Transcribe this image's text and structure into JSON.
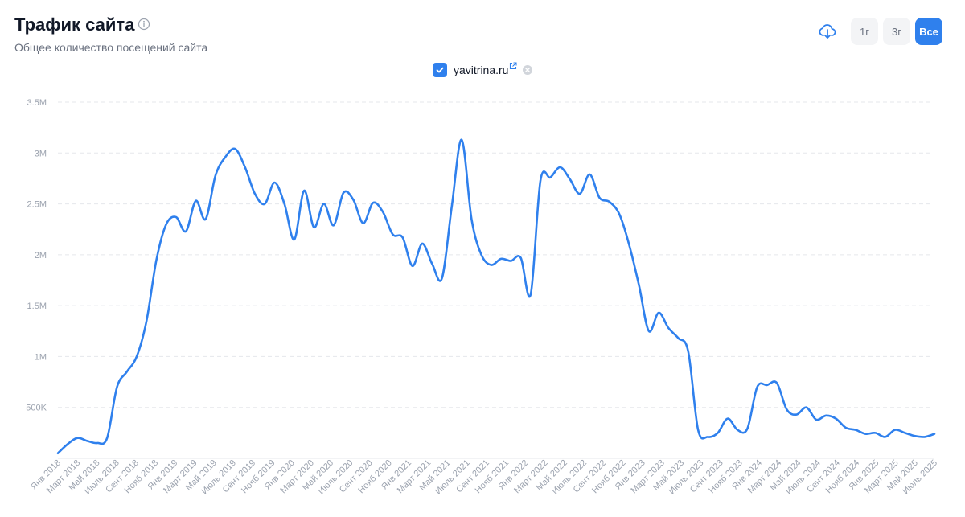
{
  "header": {
    "title": "Трафик сайта",
    "subtitle": "Общее количество посещений сайта"
  },
  "icons": {
    "info": "info-icon",
    "download": "cloud-download-icon",
    "external": "external-link-icon",
    "remove": "remove-icon",
    "checkbox": "checkmark-icon"
  },
  "range_buttons": [
    {
      "label": "1г",
      "active": false
    },
    {
      "label": "3г",
      "active": false
    },
    {
      "label": "Все",
      "active": true
    }
  ],
  "legend": {
    "label": "yavitrina.ru",
    "checked": true
  },
  "colors": {
    "accent": "#2f80ed",
    "line": "#2f80ed",
    "grid": "#e5e7eb",
    "tick": "#9ca3af"
  },
  "chart_data": {
    "type": "line",
    "grid": true,
    "ylim": [
      0,
      3500000
    ],
    "ytick_values": [
      500000,
      1000000,
      1500000,
      2000000,
      2500000,
      3000000,
      3500000
    ],
    "ytick_labels": [
      "500K",
      "1M",
      "1.5M",
      "2M",
      "2.5M",
      "3M",
      "3.5M"
    ],
    "xtick_labels": [
      "Янв 2018",
      "Март 2018",
      "Май 2018",
      "Июль 2018",
      "Сент 2018",
      "Нояб 2018",
      "Янв 2019",
      "Март 2019",
      "Май 2019",
      "Июль 2019",
      "Сент 2019",
      "Нояб 2019",
      "Янв 2020",
      "Март 2020",
      "Май 2020",
      "Июль 2020",
      "Сент 2020",
      "Нояб 2020",
      "Янв 2021",
      "Март 2021",
      "Май 2021",
      "Июль 2021",
      "Сент 2021",
      "Нояб 2021",
      "Янв 2022",
      "Март 2022",
      "Май 2022",
      "Июль 2022",
      "Сент 2022",
      "Нояб 2022",
      "Янв 2023",
      "Март 2023",
      "Май 2023",
      "Июль 2023",
      "Сент 2023",
      "Нояб 2023",
      "Янв 2024",
      "Март 2024",
      "Май 2024",
      "Июль 2024",
      "Сент 2024",
      "Нояб 2024",
      "Янв 2025",
      "Март 2025",
      "Май 2025",
      "Июль 2025"
    ],
    "series": [
      {
        "name": "yavitrina.ru",
        "values": [
          50000,
          140000,
          200000,
          170000,
          150000,
          200000,
          700000,
          850000,
          1000000,
          1350000,
          1950000,
          2300000,
          2370000,
          2230000,
          2530000,
          2350000,
          2780000,
          2960000,
          3040000,
          2860000,
          2600000,
          2500000,
          2710000,
          2500000,
          2150000,
          2630000,
          2270000,
          2500000,
          2290000,
          2610000,
          2540000,
          2310000,
          2510000,
          2420000,
          2200000,
          2170000,
          1890000,
          2110000,
          1910000,
          1770000,
          2480000,
          3130000,
          2350000,
          2000000,
          1900000,
          1960000,
          1940000,
          1970000,
          1610000,
          2730000,
          2760000,
          2860000,
          2740000,
          2600000,
          2790000,
          2560000,
          2520000,
          2400000,
          2100000,
          1700000,
          1250000,
          1430000,
          1280000,
          1180000,
          1050000,
          280000,
          210000,
          250000,
          390000,
          280000,
          290000,
          700000,
          720000,
          740000,
          480000,
          430000,
          500000,
          380000,
          420000,
          390000,
          300000,
          280000,
          240000,
          250000,
          210000,
          280000,
          250000,
          220000,
          210000,
          240000
        ]
      }
    ]
  }
}
